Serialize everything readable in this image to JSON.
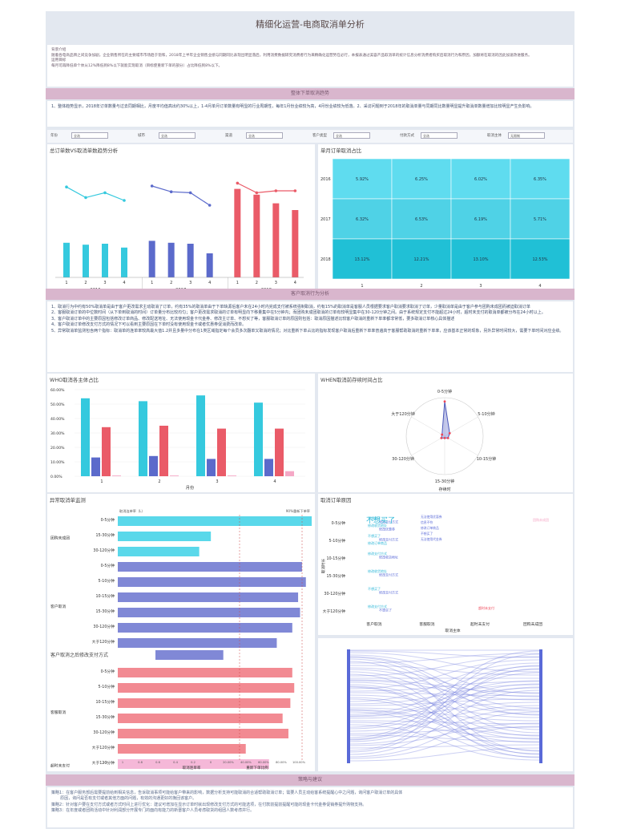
{
  "title": "精细化运营-电商取消单分析",
  "intro": {
    "heading": "背景介绍",
    "body": "随着各电商品牌之间竞争加剧，企业销售所在的主要城市市场趋于饱和，2018年上半年企业销售业绩与同期同比表现出明显落后，利用消费数据研究消费者行为来精确化运营势在必行，本报表通过美容产品取消单的统计信息分析消费者购买后取消行为和原因，加额将在取消的因此加速改进服务。",
    "goal_heading": "运用目标",
    "goal_body": "每月可再降低单个体从12%降低到8%以下就能实现取消（目标使重新下单的部分）占比降低到8%以下。"
  },
  "section1": {
    "header": "整体下单取消趋势",
    "text": "1、整体趋势显示，2018年订单数量与过去同期相比，月度平均值高出约30%以上，1-4月单月订单数量有明显的行业周期性，每年1月份业绩较为高，4月份业绩较为低落。2、采访问题到于2018年的取消单量与同期同比数量明显提升取消单数量增加比较明显产生负影响。"
  },
  "filters": [
    {
      "label": "年份",
      "value": "全选"
    },
    {
      "label": "城市",
      "value": "全选"
    },
    {
      "label": "渠道",
      "value": "全选"
    },
    {
      "label": "客户类型",
      "value": "全选"
    },
    {
      "label": "付款方式",
      "value": "全选"
    },
    {
      "label": "取消主体",
      "value": "无限制"
    }
  ],
  "section2": {
    "header": "客户取消行为分析",
    "lines": [
      "1、取消行为中约有50%取消单是由于客户更改需求主动取消了订单，约有35%的取消单由于下单缺源后客户未在24小时内完成支付被系统强制取消，约有15%的取消单是客服人员根据要求客户取消要求取消了订单，少量取消单是由于客户参与团购未成团而被迫取消订单",
      "2、客服取消订单的中位数时间（从下单到取消的时间）订单量分布比较均匀；客户更改需求取消的订单有明显向下移量集中在5分钟内；而团购未成团取消的订单有较明显集中在30-120分钟之间。由于系统规定支付不能超过24小时，超时未支付的取消单都被分布在24小时以上。",
      "3、客户取消订单中的主要原因包括修改订单商品、修改配送地址、无法使用现金卡代金券、修改主订单、不想买了等，客服取消订单的原因则包括：取消原因描述比较客户取消的重新下单率都非常低，要多取消订单核心具体描述",
      "4、客户取消订单修改支付方式的情况下可以看到主要原因在下单时没有使用现金卡或者优惠券促消费而改单。",
      "5、异常取消单监测包含两个指标：取消单的连单率较高最大值1.2并且多量中分布在1类区域指定每个会员多次翻单又取消的情况；对比重新下单占比的指标发现客户取消后重新下单率普遍高于客服帮助取消的重新下单率，应该基本正常的现象，另外异常时间较大，需要下单时间对应业绩。"
    ]
  },
  "section3": {
    "header": "策略与建议",
    "lines": [
      "策略1：在客户服务部后需要提前给到相关信息，告诉取消事项可能给客户带来的影响，数据分析支持可能取消的合适帮助取消订单；需要人员主动给客系统提醒心中之问题，询问客户取消订单的具体",
      "       原因，询问是否有支付或者其他方面的问题，有效的沟通更好的挽回该客户。",
      "策略2：针对客户要在支付方式或者方式时间上进行优化：建议可增加在显示订单时就出现修改支付方式的可能选项，在付款前提前提醒可能的现金卡代金券促销券提升购物支持。",
      "策略3：在年度或者团购活动中针对利润部分开展专门的面向有能力的新晋客户人员考虑取货的组团人数考虑并行。"
    ]
  },
  "panels": {
    "trend_title": "总订单数VS取消单数趋势分析",
    "ratio_title": "单月订单取消占比",
    "who_title": "WHO取消各主体占比",
    "when_title": "WHEN取消前存续时间占比",
    "abnormal_title": "异常取消单监测",
    "reason_title": "取消订单原因",
    "sub_pay": "客户取消之后修改支付方式"
  },
  "trend_chart": {
    "years": [
      "2016",
      "2017",
      "2018"
    ],
    "months": [
      "1",
      "2",
      "3",
      "4"
    ],
    "bar_colors": [
      "#35c9de",
      "#5b6acb",
      "#ea5b68"
    ],
    "bars": [
      [
        36,
        34,
        35,
        31
      ],
      [
        38,
        36,
        35,
        25
      ],
      [
        92,
        86,
        77,
        70
      ]
    ],
    "lines": [
      [
        94,
        83,
        88,
        80
      ],
      [
        95,
        89,
        88,
        75
      ],
      [
        98,
        88,
        90,
        90
      ]
    ],
    "ymax": 120
  },
  "heatmap": {
    "rows": [
      "2016",
      "2017",
      "2018"
    ],
    "cols": [
      "1",
      "2",
      "3",
      "4"
    ],
    "values": [
      [
        "5.92%",
        "6.25%",
        "6.02%",
        "6.35%"
      ],
      [
        "6.32%",
        "6.53%",
        "6.19%",
        "5.71%"
      ],
      [
        "13.12%",
        "12.21%",
        "13.10%",
        "12.53%"
      ]
    ],
    "row_colors": [
      "#5fdcef",
      "#4fd2e6",
      "#20c0d6"
    ]
  },
  "who_chart": {
    "y_ticks": [
      "60.00%",
      "50.00%",
      "40.00%",
      "30.00%",
      "20.00%",
      "10.00%",
      "0.00%"
    ],
    "categories": [
      "1",
      "2",
      "3",
      "4"
    ],
    "x_label": "月份",
    "colors": [
      "#35c9de",
      "#5b6acb",
      "#ea5b68",
      "#f5a8c6"
    ],
    "series": [
      [
        54,
        52,
        56,
        51
      ],
      [
        13,
        14,
        12,
        12
      ],
      [
        34,
        35,
        33,
        33
      ],
      [
        0.5,
        0.5,
        0.5,
        3.5
      ]
    ]
  },
  "when_chart": {
    "axes": [
      "0-5分钟",
      "5-10分钟",
      "10-15分钟",
      "15-30分钟",
      "30-120分钟",
      "大于120分钟"
    ],
    "legend": "存续时",
    "values": [
      0.9,
      0.15,
      0.1,
      0.05,
      0.1,
      0.08
    ]
  },
  "abnormal_chart": {
    "header_left": "取消连单率（L）",
    "header_right": "90%重新下单率",
    "x_left_label": "取消连单率",
    "x_right_label": "重新下单比例",
    "x_ticks": [
      "1.2",
      "1",
      "0.8",
      "0.6",
      "0.4",
      "0.2",
      "0",
      "20.00%",
      "40.00%",
      "60.00%",
      "80.00%",
      "100.00%"
    ],
    "groups": [
      {
        "name": "团购未成团",
        "color": "#5ad8ea",
        "items": [
          {
            "label": "0-5分钟",
            "v": 1.0
          },
          {
            "label": "15-30分钟",
            "v": 0.48
          },
          {
            "label": "30-120分钟",
            "v": 0.42
          }
        ]
      },
      {
        "name": "客户取消",
        "color": "#8088d6",
        "items": [
          {
            "label": "0-5分钟",
            "v": 0.95
          },
          {
            "label": "5-10分钟",
            "v": 0.97
          },
          {
            "label": "10-15分钟",
            "v": 0.93
          },
          {
            "label": "15-30分钟",
            "v": 0.94
          },
          {
            "label": "30-120分钟",
            "v": 0.9
          },
          {
            "label": "大于120分钟",
            "v": 0.82
          }
        ]
      },
      {
        "name": "客服取消",
        "color": "#f28a92",
        "items": [
          {
            "label": "0-5分钟",
            "v": 0.9
          },
          {
            "label": "5-10分钟",
            "v": 0.91
          },
          {
            "label": "10-15分钟",
            "v": 0.89
          },
          {
            "label": "15-30分钟",
            "v": 0.85
          },
          {
            "label": "30-120分钟",
            "v": 0.88
          },
          {
            "label": "大于120分钟",
            "v": 0.66
          }
        ]
      },
      {
        "name": "超时未支付",
        "color": "#f5b8d8",
        "items": [
          {
            "label": "大于120分钟",
            "v": 0.78
          }
        ]
      }
    ],
    "sub_bar": 0.35
  },
  "reason_chart": {
    "rows": [
      "0-5分钟",
      "5-10分钟",
      "10-15分钟",
      "15-30分钟",
      "30-120分钟",
      "大于120分钟"
    ],
    "cols": [
      "客户取消",
      "客服取消",
      "超时未支付",
      "团购未成团"
    ],
    "y_title": "取消时长",
    "x_title": "取消主体",
    "big_word": "不想买了",
    "words": [
      [
        "不想买了",
        "修改支付方式",
        "修改收货地址",
        "修改优惠券"
      ],
      [
        "不想买了",
        "修改支付方式",
        "修改订单商品"
      ],
      [
        "修改支付方式",
        "修改收货地址"
      ],
      [
        "修改收货地址",
        "修改支付方式"
      ],
      [
        "不想买了",
        "修改支付方式"
      ],
      [
        "修改支付方式",
        "不想买了"
      ]
    ],
    "small_cs": [
      "无法使用优惠券",
      "信息不符",
      "修改订单商品",
      "不想买了",
      "无法使用代金券"
    ],
    "timeout": "超时未支付",
    "group": "团购未成团"
  }
}
